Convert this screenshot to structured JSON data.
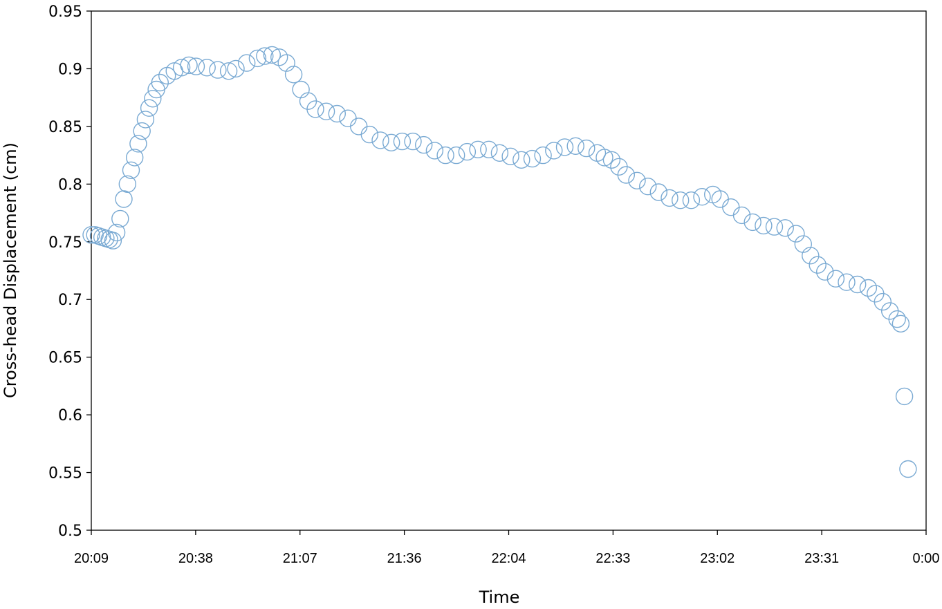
{
  "chart_data": {
    "type": "scatter",
    "title": "",
    "xlabel": "Time",
    "ylabel": "Cross-head Displacement (cm)",
    "x_scale": "time",
    "xlim": [
      "20:09",
      "0:00"
    ],
    "ylim": [
      0.5,
      0.95
    ],
    "x_ticks": [
      "20:09",
      "20:38",
      "21:07",
      "21:36",
      "22:04",
      "22:33",
      "23:02",
      "23:31",
      "0:00"
    ],
    "y_ticks": [
      "0.5",
      "0.55",
      "0.6",
      "0.65",
      "0.7",
      "0.75",
      "0.8",
      "0.85",
      "0.9",
      "0.95"
    ],
    "grid": false,
    "legend": "none",
    "marker": "open-circle",
    "color": "#7aaad3",
    "series": [
      {
        "points": [
          [
            "20:09",
            0.756
          ],
          [
            "20:10",
            0.756
          ],
          [
            "20:11",
            0.755
          ],
          [
            "20:12",
            0.754
          ],
          [
            "20:13",
            0.753
          ],
          [
            "20:14",
            0.752
          ],
          [
            "20:15",
            0.751
          ],
          [
            "20:16",
            0.758
          ],
          [
            "20:17",
            0.77
          ],
          [
            "20:18",
            0.787
          ],
          [
            "20:19",
            0.8
          ],
          [
            "20:20",
            0.812
          ],
          [
            "20:21",
            0.823
          ],
          [
            "20:22",
            0.835
          ],
          [
            "20:23",
            0.846
          ],
          [
            "20:24",
            0.856
          ],
          [
            "20:25",
            0.866
          ],
          [
            "20:26",
            0.874
          ],
          [
            "20:27",
            0.882
          ],
          [
            "20:28",
            0.888
          ],
          [
            "20:30",
            0.894
          ],
          [
            "20:32",
            0.898
          ],
          [
            "20:34",
            0.901
          ],
          [
            "20:36",
            0.903
          ],
          [
            "20:38",
            0.902
          ],
          [
            "20:41",
            0.901
          ],
          [
            "20:44",
            0.899
          ],
          [
            "20:47",
            0.898
          ],
          [
            "20:49",
            0.9
          ],
          [
            "20:52",
            0.905
          ],
          [
            "20:55",
            0.909
          ],
          [
            "20:57",
            0.911
          ],
          [
            "20:59",
            0.912
          ],
          [
            "21:01",
            0.91
          ],
          [
            "21:03",
            0.905
          ],
          [
            "21:05",
            0.895
          ],
          [
            "21:07",
            0.882
          ],
          [
            "21:09",
            0.872
          ],
          [
            "21:11",
            0.865
          ],
          [
            "21:14",
            0.863
          ],
          [
            "21:17",
            0.861
          ],
          [
            "21:20",
            0.857
          ],
          [
            "21:23",
            0.85
          ],
          [
            "21:26",
            0.843
          ],
          [
            "21:29",
            0.838
          ],
          [
            "21:32",
            0.836
          ],
          [
            "21:35",
            0.837
          ],
          [
            "21:38",
            0.837
          ],
          [
            "21:41",
            0.834
          ],
          [
            "21:44",
            0.829
          ],
          [
            "21:47",
            0.825
          ],
          [
            "21:50",
            0.825
          ],
          [
            "21:53",
            0.828
          ],
          [
            "21:56",
            0.83
          ],
          [
            "21:59",
            0.83
          ],
          [
            "22:02",
            0.827
          ],
          [
            "22:05",
            0.824
          ],
          [
            "22:08",
            0.821
          ],
          [
            "22:11",
            0.822
          ],
          [
            "22:14",
            0.825
          ],
          [
            "22:17",
            0.829
          ],
          [
            "22:20",
            0.832
          ],
          [
            "22:23",
            0.833
          ],
          [
            "22:26",
            0.831
          ],
          [
            "22:29",
            0.827
          ],
          [
            "22:31",
            0.823
          ],
          [
            "22:33",
            0.821
          ],
          [
            "22:35",
            0.815
          ],
          [
            "22:37",
            0.808
          ],
          [
            "22:40",
            0.803
          ],
          [
            "22:43",
            0.798
          ],
          [
            "22:46",
            0.793
          ],
          [
            "22:49",
            0.788
          ],
          [
            "22:52",
            0.786
          ],
          [
            "22:55",
            0.786
          ],
          [
            "22:58",
            0.789
          ],
          [
            "23:01",
            0.791
          ],
          [
            "23:03",
            0.787
          ],
          [
            "23:06",
            0.78
          ],
          [
            "23:09",
            0.773
          ],
          [
            "23:12",
            0.767
          ],
          [
            "23:15",
            0.764
          ],
          [
            "23:18",
            0.763
          ],
          [
            "23:21",
            0.762
          ],
          [
            "23:24",
            0.757
          ],
          [
            "23:26",
            0.748
          ],
          [
            "23:28",
            0.738
          ],
          [
            "23:30",
            0.73
          ],
          [
            "23:32",
            0.724
          ],
          [
            "23:35",
            0.718
          ],
          [
            "23:38",
            0.715
          ],
          [
            "23:41",
            0.713
          ],
          [
            "23:44",
            0.71
          ],
          [
            "23:46",
            0.705
          ],
          [
            "23:48",
            0.698
          ],
          [
            "23:50",
            0.69
          ],
          [
            "23:52",
            0.683
          ],
          [
            "23:53",
            0.679
          ],
          [
            "23:54",
            0.616
          ],
          [
            "23:55",
            0.553
          ]
        ]
      }
    ]
  }
}
